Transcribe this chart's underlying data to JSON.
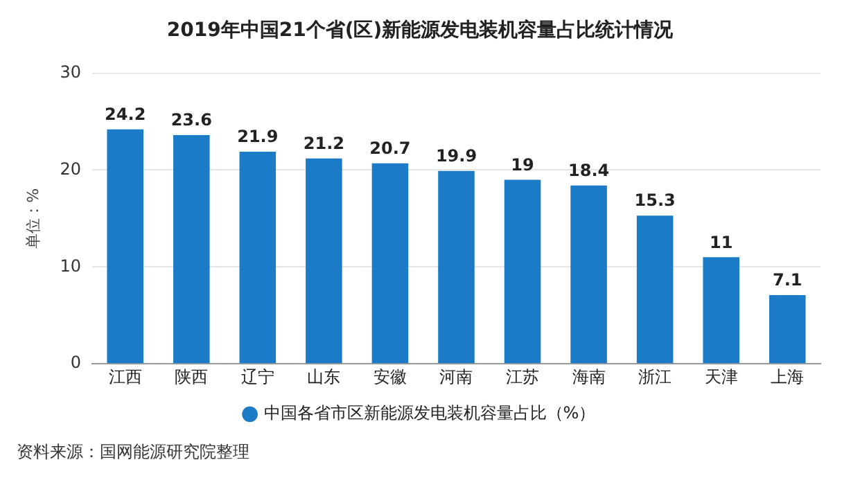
{
  "chart_data": {
    "type": "bar",
    "title": "2019年中国21个省(区)新能源发电装机容量占比统计情况",
    "ylabel": "单位：%",
    "categories": [
      "江西",
      "陕西",
      "辽宁",
      "山东",
      "安徽",
      "河南",
      "江苏",
      "海南",
      "浙江",
      "天津",
      "上海"
    ],
    "series": [
      {
        "name": "中国各省市区新能源发电装机容量占比（%）",
        "color": "#1b7bc6",
        "values": [
          24.2,
          23.6,
          21.9,
          21.2,
          20.7,
          19.9,
          19,
          18.4,
          15.3,
          11,
          7.1
        ]
      }
    ],
    "ylim": [
      0,
      30
    ],
    "yticks": [
      0,
      10,
      20,
      30
    ],
    "grid": "y",
    "legend": "bottom",
    "data_labels": true,
    "annotations": [
      "资料来源：国网能源研究院整理"
    ]
  }
}
